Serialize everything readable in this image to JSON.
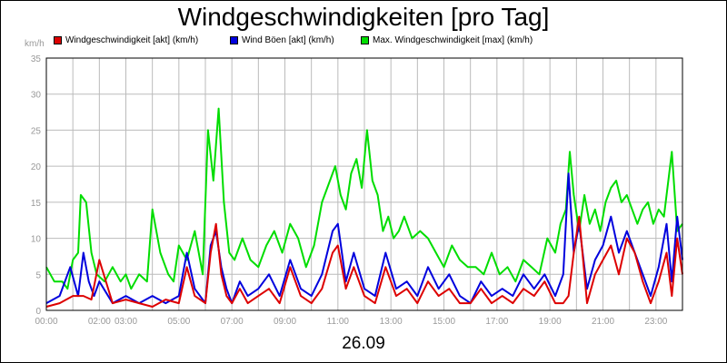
{
  "chart_data": {
    "type": "line",
    "title": "Windgeschwindigkeiten [pro Tag]",
    "ylabel": "km/h",
    "xlabel": "26.09",
    "ylim": [
      0,
      35
    ],
    "yticks": [
      "0",
      "5",
      "10",
      "15",
      "20",
      "25",
      "30",
      "35"
    ],
    "xticks": [
      "00:00",
      "02:00",
      "03:00",
      "05:00",
      "07:00",
      "09:00",
      "11:00",
      "13:00",
      "15:00",
      "17:00",
      "19:00",
      "21:00",
      "23:00"
    ],
    "xtick_hours": [
      0,
      2,
      3,
      5,
      7,
      9,
      11,
      13,
      15,
      17,
      19,
      21,
      23
    ],
    "xlim_hours": [
      0,
      24
    ],
    "grid": true,
    "legend_position": "top",
    "series": [
      {
        "name": "Windgeschwindigkeit [akt] (km/h)",
        "color": "#dd0000",
        "x": [
          0,
          0.5,
          1,
          1.4,
          1.7,
          2,
          2.5,
          3,
          3.5,
          4,
          4.5,
          5,
          5.3,
          5.6,
          6,
          6.2,
          6.4,
          6.6,
          6.8,
          7,
          7.3,
          7.6,
          8,
          8.4,
          8.8,
          9.2,
          9.6,
          10,
          10.4,
          10.8,
          11,
          11.3,
          11.6,
          12,
          12.4,
          12.8,
          13.2,
          13.6,
          14,
          14.4,
          14.8,
          15.2,
          15.6,
          16,
          16.4,
          16.8,
          17.2,
          17.6,
          18,
          18.4,
          18.8,
          19.2,
          19.5,
          19.7,
          19.9,
          20.1,
          20.4,
          20.7,
          21,
          21.3,
          21.6,
          21.9,
          22.2,
          22.5,
          22.8,
          23.1,
          23.4,
          23.6,
          23.8,
          24
        ],
        "values": [
          0.5,
          1,
          2,
          2,
          1.5,
          7,
          1,
          1.5,
          1,
          0.5,
          1.5,
          1,
          6,
          2,
          1,
          8,
          12,
          5,
          2,
          1,
          3,
          1,
          2,
          3,
          1,
          6,
          2,
          1,
          3,
          8,
          9,
          3,
          6,
          2,
          1,
          6,
          2,
          3,
          1,
          4,
          2,
          3,
          1,
          1,
          3,
          1,
          2,
          1,
          3,
          2,
          4,
          1,
          1,
          2,
          8,
          13,
          1,
          5,
          7,
          9,
          5,
          10,
          8,
          4,
          1,
          4,
          8,
          2,
          10,
          5
        ]
      },
      {
        "name": "Wind Böen [akt] (km/h)",
        "color": "#0000dd",
        "x": [
          0,
          0.5,
          0.9,
          1.2,
          1.4,
          1.6,
          1.8,
          2,
          2.5,
          3,
          3.5,
          4,
          4.5,
          5,
          5.3,
          5.6,
          6,
          6.2,
          6.4,
          6.6,
          6.8,
          7,
          7.3,
          7.6,
          8,
          8.4,
          8.8,
          9.2,
          9.6,
          10,
          10.4,
          10.8,
          11,
          11.3,
          11.6,
          12,
          12.4,
          12.8,
          13.2,
          13.6,
          14,
          14.4,
          14.8,
          15.2,
          15.6,
          16,
          16.4,
          16.8,
          17.2,
          17.6,
          18,
          18.4,
          18.8,
          19.2,
          19.5,
          19.7,
          19.9,
          20.1,
          20.4,
          20.7,
          21,
          21.3,
          21.6,
          21.9,
          22.2,
          22.5,
          22.8,
          23.1,
          23.4,
          23.6,
          23.8,
          24
        ],
        "values": [
          1,
          2,
          6,
          2,
          8,
          4,
          2,
          4,
          1,
          2,
          1,
          2,
          1,
          2,
          8,
          3,
          1,
          9,
          11,
          6,
          3,
          1,
          4,
          2,
          3,
          5,
          2,
          7,
          3,
          2,
          5,
          11,
          12,
          4,
          8,
          3,
          2,
          8,
          3,
          4,
          2,
          6,
          3,
          5,
          2,
          1,
          4,
          2,
          3,
          2,
          5,
          3,
          5,
          2,
          5,
          19,
          8,
          12,
          3,
          7,
          9,
          13,
          8,
          11,
          8,
          5,
          2,
          6,
          12,
          4,
          13,
          7
        ]
      },
      {
        "name": "Max. Windgeschwindigkeit [max] (km/h)",
        "color": "#00dd00",
        "x": [
          0,
          0.3,
          0.6,
          0.8,
          1,
          1.2,
          1.3,
          1.5,
          1.7,
          1.9,
          2.2,
          2.5,
          2.8,
          3,
          3.2,
          3.5,
          3.8,
          4,
          4.3,
          4.6,
          4.8,
          5,
          5.3,
          5.6,
          5.9,
          6.1,
          6.3,
          6.5,
          6.7,
          6.9,
          7.1,
          7.4,
          7.7,
          8,
          8.3,
          8.6,
          8.9,
          9.2,
          9.5,
          9.8,
          10.1,
          10.4,
          10.7,
          10.9,
          11.1,
          11.3,
          11.5,
          11.7,
          11.9,
          12.1,
          12.3,
          12.5,
          12.7,
          12.9,
          13.1,
          13.3,
          13.5,
          13.8,
          14.1,
          14.4,
          14.7,
          15,
          15.3,
          15.6,
          15.9,
          16.2,
          16.5,
          16.8,
          17.1,
          17.4,
          17.7,
          18,
          18.3,
          18.6,
          18.9,
          19.2,
          19.4,
          19.6,
          19.75,
          19.9,
          20.1,
          20.3,
          20.5,
          20.7,
          20.9,
          21.1,
          21.3,
          21.5,
          21.7,
          21.9,
          22.1,
          22.3,
          22.5,
          22.7,
          22.9,
          23.1,
          23.3,
          23.5,
          23.6,
          23.8,
          24
        ],
        "values": [
          6,
          4,
          4,
          3,
          7,
          8,
          16,
          15,
          8,
          5,
          4,
          6,
          4,
          5,
          3,
          5,
          4,
          14,
          8,
          5,
          4,
          9,
          7,
          11,
          5,
          25,
          18,
          28,
          15,
          8,
          7,
          10,
          7,
          6,
          9,
          11,
          8,
          12,
          10,
          6,
          9,
          15,
          18,
          20,
          16,
          14,
          19,
          21,
          17,
          25,
          18,
          16,
          11,
          13,
          10,
          11,
          13,
          10,
          11,
          10,
          8,
          6,
          9,
          7,
          6,
          6,
          5,
          8,
          5,
          6,
          4,
          7,
          6,
          5,
          10,
          8,
          12,
          14,
          22,
          16,
          11,
          16,
          12,
          14,
          11,
          15,
          17,
          18,
          15,
          16,
          14,
          12,
          14,
          15,
          12,
          14,
          13,
          19,
          22,
          11,
          12
        ]
      }
    ]
  },
  "colors": {
    "plot_background": "#ffffff",
    "grid": "#bbbbbb",
    "axis_text": "#999999"
  }
}
